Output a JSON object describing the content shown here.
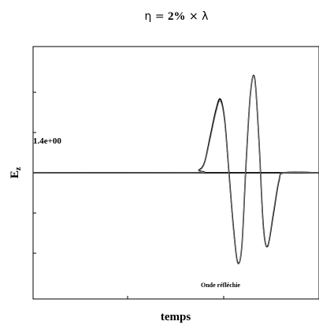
{
  "title": {
    "eta": "η = ",
    "pct": "2%",
    "rest": " × λ"
  },
  "ylabel": "E",
  "ylabel_sub": "z",
  "xlabel": "temps",
  "amplitude_label": "1.4e+00",
  "annotation": "Onde réfléchie",
  "chart_data": {
    "type": "line",
    "title": "η = 2% × λ",
    "xlabel": "temps",
    "ylabel": "Ez",
    "xlim": [
      0,
      1
    ],
    "ylim": [
      -2.4,
      2.4
    ],
    "amplitude": 1.4,
    "grid": false,
    "series": [
      {
        "style": "solid-thick",
        "x": [
          0.0,
          0.55,
          0.58,
          0.6,
          0.62,
          0.64,
          0.655,
          0.67,
          0.685,
          0.7,
          0.715,
          0.73,
          0.745,
          0.76,
          0.775,
          0.79,
          0.805,
          0.82,
          0.84,
          0.86,
          0.88,
          1.0
        ],
        "y": [
          0.0,
          0.0,
          0.05,
          0.2,
          0.7,
          1.2,
          1.4,
          1.0,
          0.0,
          -1.0,
          -1.7,
          -1.4,
          0.2,
          1.5,
          1.8,
          0.6,
          -1.0,
          -1.4,
          -0.8,
          -0.15,
          0.0,
          0.0
        ]
      },
      {
        "style": "thin-gray",
        "x": [
          0.0,
          0.55,
          0.58,
          0.6,
          0.62,
          0.64,
          0.655,
          0.67,
          0.685,
          0.7,
          0.715,
          0.73,
          0.745,
          0.76,
          0.775,
          0.79,
          0.805,
          0.82,
          0.84,
          0.86,
          0.88,
          1.0
        ],
        "y": [
          0.0,
          0.0,
          0.04,
          0.18,
          0.65,
          1.15,
          1.36,
          0.95,
          -0.05,
          -1.05,
          -1.72,
          -1.38,
          0.25,
          1.52,
          1.78,
          0.55,
          -1.05,
          -1.38,
          -0.75,
          -0.12,
          0.0,
          0.0
        ]
      }
    ]
  }
}
